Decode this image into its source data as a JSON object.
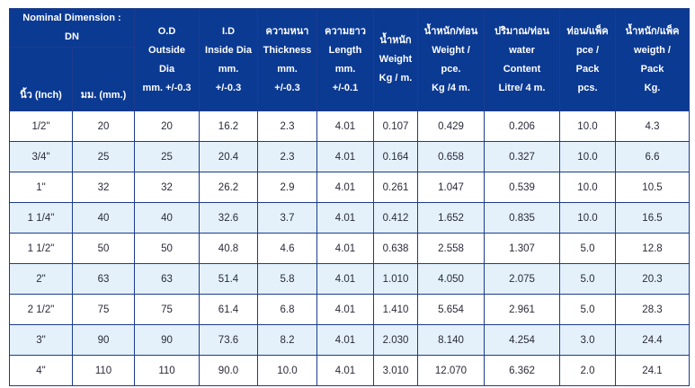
{
  "header": {
    "nominal": {
      "line1": "Nominal Dimension :",
      "line2": "DN"
    },
    "inch": "นิ้ว (Inch)",
    "mm": "มม. (mm.)",
    "columns": [
      {
        "lines": [
          "O.D",
          "Outside",
          "Dia",
          "mm. +/-0.3"
        ]
      },
      {
        "lines": [
          "I.D",
          "Inside Dia",
          "mm.",
          "+/-0.3"
        ]
      },
      {
        "lines": [
          "ความหนา",
          "Thickness",
          "mm.",
          "+/-0.3"
        ]
      },
      {
        "lines": [
          "ความยาว",
          "Length",
          "mm.",
          "+/-0.1"
        ]
      },
      {
        "lines": [
          "น้ำหนัก",
          "Weight",
          "Kg / m."
        ]
      },
      {
        "lines": [
          "น้ำหนัก/ท่อน",
          "Weight /",
          "pce.",
          "Kg /4 m."
        ]
      },
      {
        "lines": [
          "ปริมาณ/ท่อน",
          "water",
          "Content",
          "Litre/ 4 m."
        ]
      },
      {
        "lines": [
          "ท่อน/แพ็ค",
          "pce /",
          "Pack",
          "pcs."
        ]
      },
      {
        "lines": [
          "น้ำหนัก/แพ็ค",
          "weigth /",
          "Pack",
          "Kg."
        ]
      }
    ]
  },
  "rows": [
    [
      "1/2\"",
      "20",
      "20",
      "16.2",
      "2.3",
      "4.01",
      "0.107",
      "0.429",
      "0.206",
      "10.0",
      "4.3"
    ],
    [
      "3/4\"",
      "25",
      "25",
      "20.4",
      "2.3",
      "4.01",
      "0.164",
      "0.658",
      "0.327",
      "10.0",
      "6.6"
    ],
    [
      "1\"",
      "32",
      "32",
      "26.2",
      "2.9",
      "4.01",
      "0.261",
      "1.047",
      "0.539",
      "10.0",
      "10.5"
    ],
    [
      "1 1/4\"",
      "40",
      "40",
      "32.6",
      "3.7",
      "4.01",
      "0.412",
      "1.652",
      "0.835",
      "10.0",
      "16.5"
    ],
    [
      "1 1/2\"",
      "50",
      "50",
      "40.8",
      "4.6",
      "4.01",
      "0.638",
      "2.558",
      "1.307",
      "5.0",
      "12.8"
    ],
    [
      "2\"",
      "63",
      "63",
      "51.4",
      "5.8",
      "4.01",
      "1.010",
      "4.050",
      "2.075",
      "5.0",
      "20.3"
    ],
    [
      "2 1/2\"",
      "75",
      "75",
      "61.4",
      "6.8",
      "4.01",
      "1.410",
      "5.654",
      "2.961",
      "5.0",
      "28.3"
    ],
    [
      "3\"",
      "90",
      "90",
      "73.6",
      "8.2",
      "4.01",
      "2.030",
      "8.140",
      "4.254",
      "3.0",
      "24.4"
    ],
    [
      "4\"",
      "110",
      "110",
      "90.0",
      "10.0",
      "4.01",
      "3.010",
      "12.070",
      "6.362",
      "2.0",
      "24.1"
    ]
  ],
  "colors": {
    "header_bg": "#0b3a93",
    "header_text": "#ffffff",
    "stripe": "#e4f1fb",
    "border": "#1d3b8c"
  }
}
